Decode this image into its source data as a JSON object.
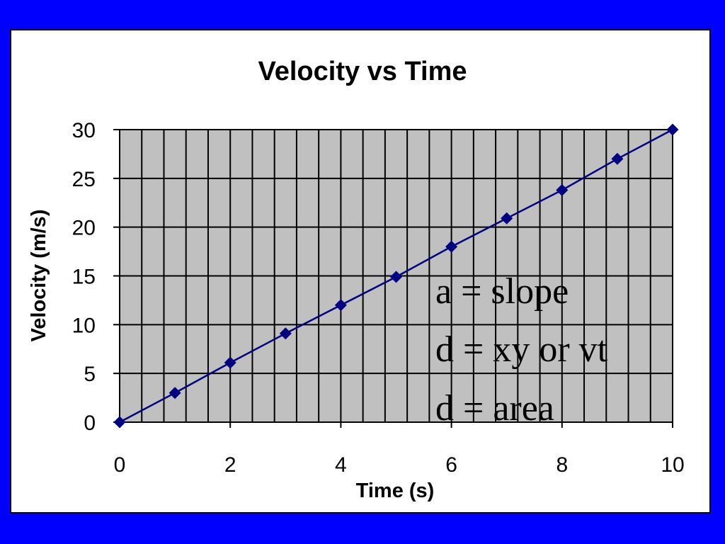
{
  "chart_data": {
    "type": "line",
    "title": "Velocity vs Time",
    "xlabel": "Time (s)",
    "ylabel": "Velocity (m/s)",
    "xlim": [
      0,
      10
    ],
    "ylim": [
      0,
      30
    ],
    "x_ticks": [
      "0",
      "2",
      "4",
      "6",
      "8",
      "10"
    ],
    "y_ticks": [
      "0",
      "5",
      "10",
      "15",
      "20",
      "25",
      "30"
    ],
    "grid": true,
    "legend": "none",
    "series": [
      {
        "x": [
          0,
          1,
          2,
          3,
          4,
          5,
          6,
          7,
          8,
          9,
          10
        ],
        "y": [
          0,
          3,
          6.1,
          9.1,
          12,
          14.9,
          18,
          20.9,
          23.8,
          27,
          30
        ]
      }
    ],
    "annotations": [
      "a = slope",
      "d = xy or vt",
      "d = area"
    ]
  },
  "colors": {
    "page_background": "#0000ff",
    "frame_background": "#ffffff",
    "plot_background": "#c0c0c0",
    "gridlines": "#000000",
    "series": "#000080"
  }
}
